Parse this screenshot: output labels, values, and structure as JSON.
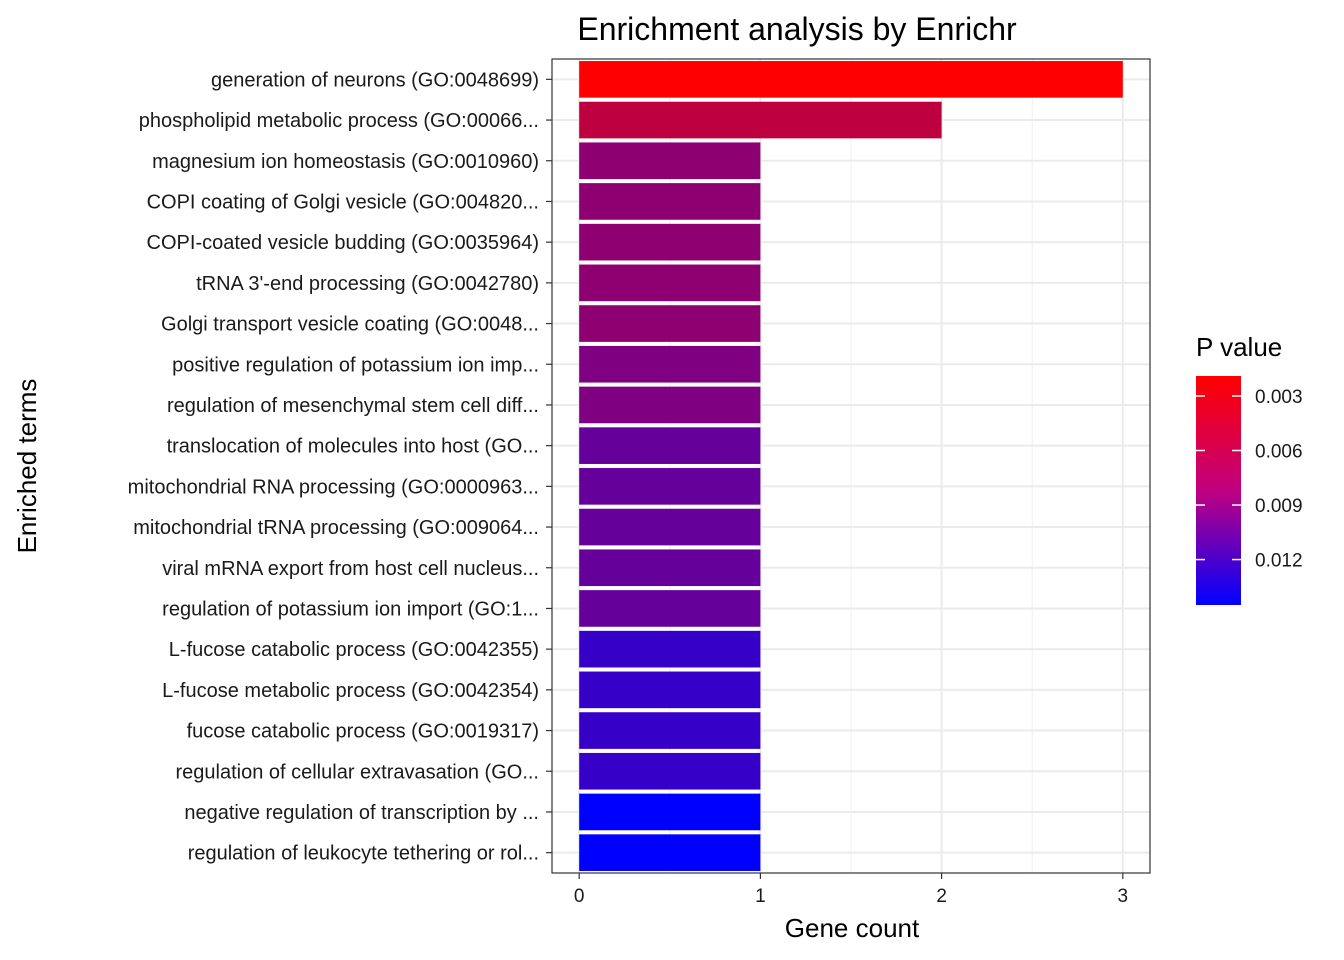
{
  "chart_data": {
    "type": "bar",
    "orientation": "horizontal",
    "title": "Enrichment analysis by Enrichr",
    "xlabel": "Gene count",
    "ylabel": "Enriched terms",
    "xlim": [
      0,
      3
    ],
    "xticks": [
      0,
      1,
      2,
      3
    ],
    "grid": true,
    "categories": [
      "generation of neurons (GO:0048699)",
      "phospholipid metabolic process (GO:00066...",
      "magnesium ion homeostasis (GO:0010960)",
      "COPI coating of Golgi vesicle (GO:004820...",
      "COPI-coated vesicle budding (GO:0035964)",
      "tRNA 3'-end processing (GO:0042780)",
      "Golgi transport vesicle coating (GO:0048...",
      "positive regulation of potassium ion imp...",
      "regulation of mesenchymal stem cell diff...",
      "translocation of molecules into host (GO...",
      "mitochondrial RNA processing (GO:0000963...",
      "mitochondrial tRNA processing (GO:009064...",
      "viral mRNA export from host cell nucleus...",
      "regulation of potassium ion import (GO:1...",
      "L-fucose catabolic process (GO:0042355)",
      "L-fucose metabolic process (GO:0042354)",
      "fucose catabolic process (GO:0019317)",
      "regulation of cellular extravasation (GO...",
      "negative regulation of transcription by ...",
      "regulation of leukocyte tethering or rol..."
    ],
    "values": [
      3,
      2,
      1,
      1,
      1,
      1,
      1,
      1,
      1,
      1,
      1,
      1,
      1,
      1,
      1,
      1,
      1,
      1,
      1,
      1
    ],
    "p_values": [
      0.0019,
      0.0051,
      0.0075,
      0.0075,
      0.0075,
      0.0075,
      0.0075,
      0.0082,
      0.0082,
      0.0095,
      0.0095,
      0.0095,
      0.0095,
      0.0095,
      0.0118,
      0.0118,
      0.0118,
      0.0118,
      0.0145,
      0.0145
    ],
    "legend": {
      "title": "P value",
      "placement": "right",
      "ticks": [
        "0.003",
        "0.006",
        "0.009",
        "0.012"
      ],
      "tick_values": [
        0.003,
        0.006,
        0.009,
        0.012
      ],
      "range": [
        0.0019,
        0.0145
      ],
      "color_low_p": "#ff0000",
      "color_high_p": "#0000ff"
    }
  }
}
